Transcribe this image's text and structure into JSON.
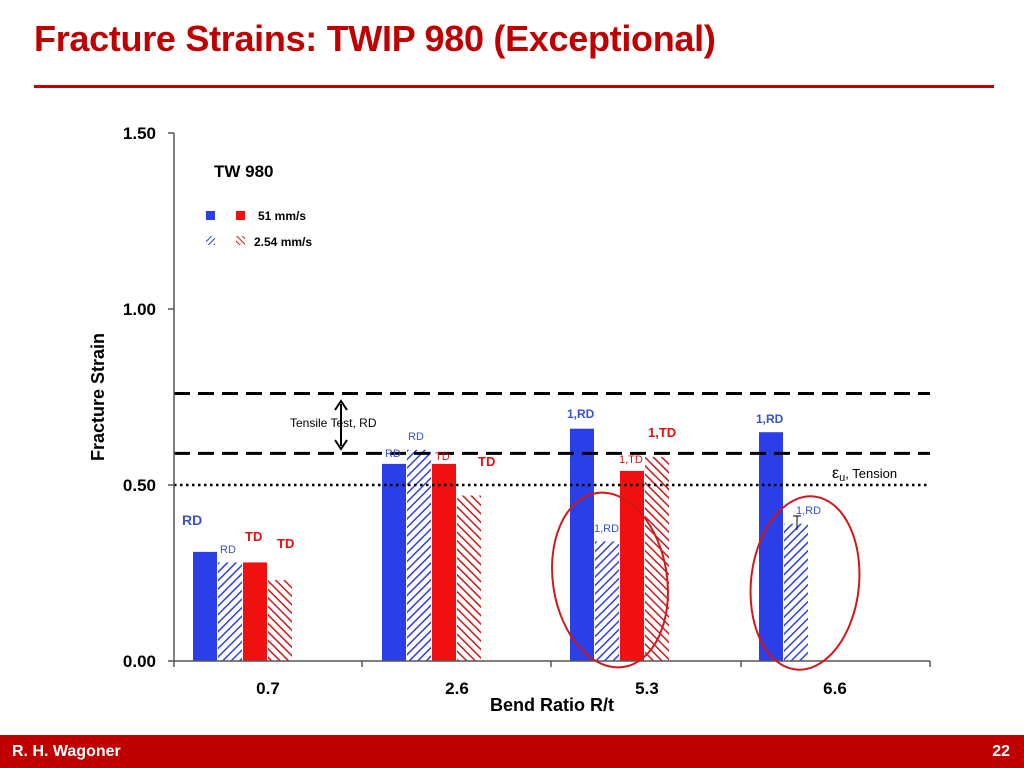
{
  "slide": {
    "title": "Fracture Strains:  TWIP 980 (Exceptional)",
    "author": "R. H. Wagoner",
    "page_number": "22"
  },
  "colors": {
    "title_red": "#c00000",
    "blue": "#2b3fe8",
    "red": "#f01010",
    "hatch_blue": "#2b3fe8",
    "hatch_red": "#d01818",
    "ellipse": "#d01818",
    "label_blue": "#3a52c8",
    "label_red": "#e01010"
  },
  "chart_data": {
    "type": "bar",
    "title": "TW 980",
    "xlabel": "Bend Ratio  R/t",
    "ylabel": "Fracture Strain",
    "ylim": [
      0,
      1.5
    ],
    "yticks": [
      "0.00",
      "0.50",
      "1.00",
      "1.50"
    ],
    "ytick_values": [
      0,
      0.5,
      1.0,
      1.5
    ],
    "categories": [
      "0.7",
      "2.6",
      "5.3",
      "6.6"
    ],
    "series": [
      {
        "style": "solid-blue",
        "values": [
          0.31,
          0.56,
          0.66,
          0.65
        ]
      },
      {
        "style": "hatch-blue",
        "values": [
          0.28,
          0.6,
          0.34,
          0.39
        ]
      },
      {
        "style": "solid-red",
        "values": [
          0.28,
          0.56,
          0.54,
          null
        ]
      },
      {
        "style": "hatch-red",
        "values": [
          0.23,
          0.47,
          0.58,
          null
        ]
      }
    ],
    "legend": [
      {
        "label": "51 mm/s",
        "style": "solid"
      },
      {
        "label": "2.54 mm/s",
        "style": "hatch"
      }
    ],
    "reference_lines": [
      {
        "value": 0.76,
        "style": "dashed"
      },
      {
        "value": 0.59,
        "style": "dashed"
      },
      {
        "value": 0.5,
        "style": "dotted"
      }
    ],
    "annotations": {
      "tensile_test": "Tensile Test, RD",
      "eu_symbol": "ε",
      "eu_sub": "u",
      "eu_rest": ", Tension"
    },
    "bar_labels": [
      {
        "text": "RD",
        "color": "blue",
        "size": 14,
        "bold": true
      },
      {
        "text": "RD",
        "color": "blue",
        "size": 11,
        "bold": false
      },
      {
        "text": "TD",
        "color": "red",
        "size": 13,
        "bold": true
      },
      {
        "text": "TD",
        "color": "red",
        "size": 13,
        "bold": true
      },
      {
        "text": "RD",
        "color": "blue",
        "size": 11,
        "bold": false
      },
      {
        "text": "RD",
        "color": "blue",
        "size": 11,
        "bold": false
      },
      {
        "text": "TD",
        "color": "red",
        "size": 11,
        "bold": false
      },
      {
        "text": "TD",
        "color": "red",
        "size": 13,
        "bold": true
      },
      {
        "text": "1,RD",
        "color": "blue",
        "size": 12,
        "bold": true
      },
      {
        "text": "1,RD",
        "color": "blue",
        "size": 11,
        "bold": false
      },
      {
        "text": "1,TD",
        "color": "red",
        "size": 11,
        "bold": false
      },
      {
        "text": "1,TD",
        "color": "red",
        "size": 13,
        "bold": true
      },
      {
        "text": "1,RD",
        "color": "blue",
        "size": 12,
        "bold": true
      },
      {
        "text": "1,RD",
        "color": "blue",
        "size": 11,
        "bold": false
      }
    ]
  }
}
